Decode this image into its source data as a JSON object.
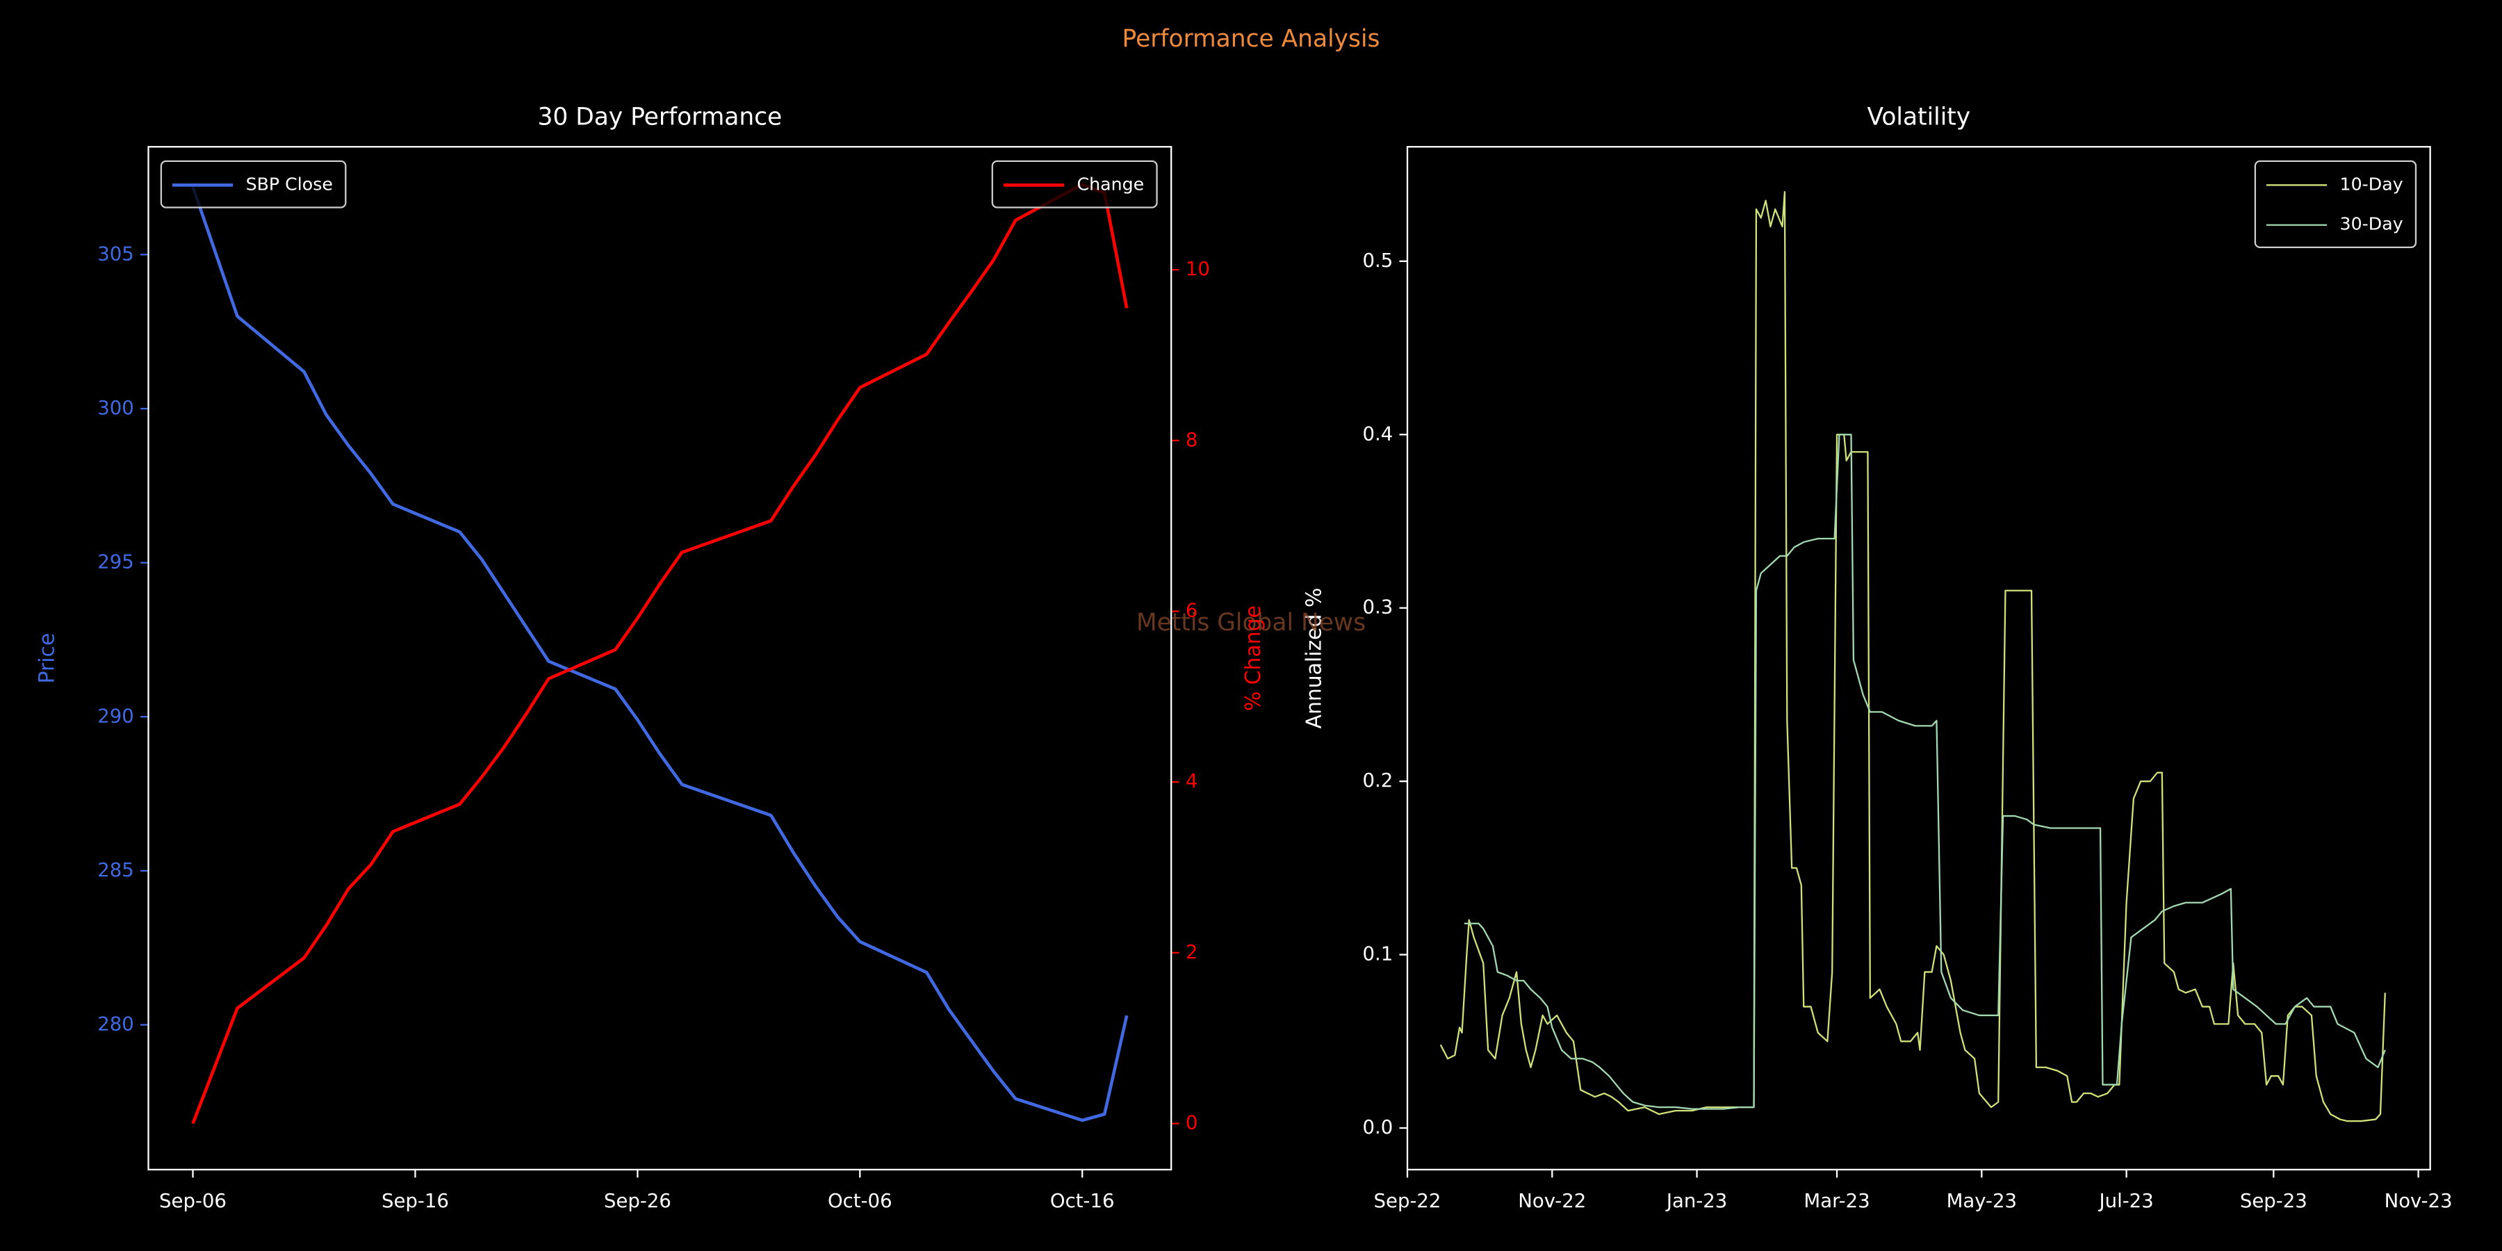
{
  "title": "Performance Analysis",
  "watermark": "Mettis Global News",
  "chart_data": [
    {
      "type": "line",
      "title": "30 Day Performance",
      "ylabel": "Price",
      "y2label": "% Change",
      "x": [
        "Sep-06",
        "Sep-08",
        "Sep-11",
        "Sep-12",
        "Sep-13",
        "Sep-14",
        "Sep-15",
        "Sep-18",
        "Sep-19",
        "Sep-20",
        "Sep-21",
        "Sep-22",
        "Sep-25",
        "Sep-26",
        "Sep-27",
        "Sep-28",
        "Oct-02",
        "Oct-03",
        "Oct-04",
        "Oct-05",
        "Oct-06",
        "Oct-09",
        "Oct-10",
        "Oct-11",
        "Oct-12",
        "Oct-13",
        "Oct-16",
        "Oct-17",
        "Oct-18"
      ],
      "xlim": [
        "Sep-04",
        "Oct-20"
      ],
      "xticks": [
        "Sep-06",
        "Sep-16",
        "Sep-26",
        "Oct-06",
        "Oct-16"
      ],
      "ylim": [
        275.3,
        308.5
      ],
      "yticks": [
        280,
        285,
        290,
        295,
        300,
        305
      ],
      "y2lim": [
        -0.54,
        11.44
      ],
      "y2ticks": [
        0,
        2,
        4,
        6,
        8,
        10
      ],
      "legend": "upper left",
      "legend_y2": "upper right",
      "series": [
        {
          "name": "SBP Close",
          "color": "#4169e1",
          "axis": "y",
          "values": [
            307.2,
            303.0,
            301.2,
            299.8,
            298.8,
            297.9,
            296.9,
            296.0,
            295.1,
            294.0,
            292.9,
            291.8,
            290.9,
            289.9,
            288.8,
            287.8,
            286.8,
            285.6,
            284.5,
            283.5,
            282.7,
            281.7,
            280.5,
            279.5,
            278.5,
            277.6,
            276.9,
            277.1,
            280.3
          ]
        },
        {
          "name": "Change",
          "color": "#ff0000",
          "axis": "y2",
          "values": [
            0,
            1.35,
            1.94,
            2.32,
            2.75,
            3.03,
            3.42,
            3.74,
            4.06,
            4.41,
            4.8,
            5.21,
            5.55,
            5.92,
            6.32,
            6.69,
            7.06,
            7.46,
            7.83,
            8.24,
            8.62,
            9.01,
            9.38,
            9.74,
            10.11,
            10.58,
            11.0,
            10.9,
            9.55
          ]
        }
      ]
    },
    {
      "type": "line",
      "title": "Volatility",
      "ylabel": "Annualized %",
      "xlim": [
        0,
        431
      ],
      "xticks": [
        {
          "value": 0,
          "label": "Sep-22"
        },
        {
          "value": 61,
          "label": "Nov-22"
        },
        {
          "value": 122,
          "label": "Jan-23"
        },
        {
          "value": 181,
          "label": "Mar-23"
        },
        {
          "value": 242,
          "label": "May-23"
        },
        {
          "value": 303,
          "label": "Jul-23"
        },
        {
          "value": 365,
          "label": "Sep-23"
        },
        {
          "value": 426,
          "label": "Nov-23"
        }
      ],
      "ylim": [
        -0.024,
        0.566
      ],
      "yticks": [
        {
          "value": 0,
          "label": "0.0"
        },
        0.1,
        0.2,
        0.3,
        0.4,
        0.5
      ],
      "legend": "upper right",
      "series": [
        {
          "name": "10-Day",
          "color": "#cfe27a",
          "x": [
            14,
            17,
            20,
            22,
            23,
            25,
            26,
            28,
            32,
            34,
            37,
            40,
            43,
            46,
            48,
            50,
            52,
            54,
            57,
            59,
            63,
            67,
            70,
            73,
            76,
            79,
            83,
            86,
            89,
            93,
            100,
            106,
            113,
            120,
            126,
            133,
            139,
            143,
            146,
            147,
            149,
            151,
            153,
            155,
            158,
            159,
            160,
            162,
            164,
            166,
            167,
            170,
            173,
            177,
            179,
            181,
            184,
            185,
            187,
            190,
            194,
            195,
            199,
            202,
            206,
            208,
            212,
            215,
            216,
            218,
            221,
            223,
            226,
            229,
            233,
            235,
            239,
            241,
            246,
            249,
            252,
            254,
            258,
            263,
            265,
            269,
            274,
            278,
            280,
            282,
            285,
            288,
            291,
            295,
            298,
            300,
            303,
            306,
            309,
            313,
            316,
            318,
            319,
            323,
            325,
            328,
            332,
            335,
            338,
            340,
            344,
            346,
            348,
            350,
            353,
            357,
            360,
            362,
            364,
            367,
            369,
            371,
            374,
            377,
            381,
            383,
            386,
            389,
            393,
            396,
            402,
            408,
            410,
            412
          ],
          "values": [
            0.048,
            0.04,
            0.042,
            0.058,
            0.055,
            0.1,
            0.12,
            0.11,
            0.095,
            0.045,
            0.04,
            0.065,
            0.075,
            0.09,
            0.06,
            0.045,
            0.035,
            0.045,
            0.065,
            0.06,
            0.065,
            0.055,
            0.05,
            0.022,
            0.02,
            0.018,
            0.02,
            0.018,
            0.015,
            0.01,
            0.012,
            0.008,
            0.01,
            0.01,
            0.012,
            0.012,
            0.012,
            0.012,
            0.012,
            0.53,
            0.525,
            0.535,
            0.52,
            0.53,
            0.52,
            0.54,
            0.235,
            0.15,
            0.15,
            0.14,
            0.07,
            0.07,
            0.055,
            0.05,
            0.09,
            0.4,
            0.4,
            0.385,
            0.39,
            0.39,
            0.39,
            0.075,
            0.08,
            0.07,
            0.06,
            0.05,
            0.05,
            0.055,
            0.045,
            0.09,
            0.09,
            0.105,
            0.1,
            0.085,
            0.055,
            0.045,
            0.04,
            0.02,
            0.012,
            0.015,
            0.31,
            0.31,
            0.31,
            0.31,
            0.035,
            0.035,
            0.033,
            0.03,
            0.015,
            0.015,
            0.02,
            0.02,
            0.018,
            0.02,
            0.025,
            0.025,
            0.13,
            0.19,
            0.2,
            0.2,
            0.205,
            0.205,
            0.095,
            0.09,
            0.08,
            0.078,
            0.08,
            0.07,
            0.07,
            0.06,
            0.06,
            0.06,
            0.095,
            0.065,
            0.06,
            0.06,
            0.055,
            0.025,
            0.03,
            0.03,
            0.025,
            0.065,
            0.07,
            0.07,
            0.065,
            0.03,
            0.015,
            0.008,
            0.005,
            0.004,
            0.004,
            0.005,
            0.008,
            0.078
          ]
        },
        {
          "name": "30-Day",
          "color": "#a3d9b1",
          "x": [
            24,
            30,
            32,
            36,
            38,
            42,
            46,
            49,
            52,
            56,
            59,
            61,
            65,
            69,
            74,
            78,
            81,
            85,
            88,
            91,
            95,
            100,
            106,
            113,
            120,
            126,
            133,
            140,
            146,
            147,
            149,
            153,
            157,
            160,
            163,
            167,
            173,
            180,
            182,
            185,
            187,
            188,
            192,
            195,
            200,
            207,
            214,
            221,
            223,
            225,
            229,
            234,
            241,
            249,
            251,
            256,
            261,
            264,
            271,
            278,
            288,
            292,
            293,
            299,
            301,
            305,
            310,
            315,
            318,
            323,
            328,
            335,
            343,
            347,
            348,
            353,
            358,
            362,
            366,
            370,
            374,
            379,
            382,
            389,
            392,
            399,
            404,
            409,
            412
          ],
          "values": [
            0.118,
            0.118,
            0.115,
            0.105,
            0.09,
            0.088,
            0.085,
            0.085,
            0.08,
            0.075,
            0.07,
            0.058,
            0.045,
            0.04,
            0.04,
            0.038,
            0.035,
            0.03,
            0.025,
            0.02,
            0.015,
            0.013,
            0.012,
            0.012,
            0.011,
            0.011,
            0.011,
            0.012,
            0.012,
            0.31,
            0.32,
            0.325,
            0.33,
            0.33,
            0.335,
            0.338,
            0.34,
            0.34,
            0.4,
            0.4,
            0.4,
            0.27,
            0.25,
            0.24,
            0.24,
            0.235,
            0.232,
            0.232,
            0.235,
            0.09,
            0.075,
            0.068,
            0.065,
            0.065,
            0.18,
            0.18,
            0.178,
            0.175,
            0.173,
            0.173,
            0.173,
            0.173,
            0.025,
            0.025,
            0.06,
            0.11,
            0.115,
            0.12,
            0.125,
            0.128,
            0.13,
            0.13,
            0.135,
            0.138,
            0.08,
            0.075,
            0.07,
            0.065,
            0.06,
            0.06,
            0.07,
            0.075,
            0.07,
            0.07,
            0.06,
            0.055,
            0.04,
            0.035,
            0.045
          ]
        }
      ]
    }
  ]
}
